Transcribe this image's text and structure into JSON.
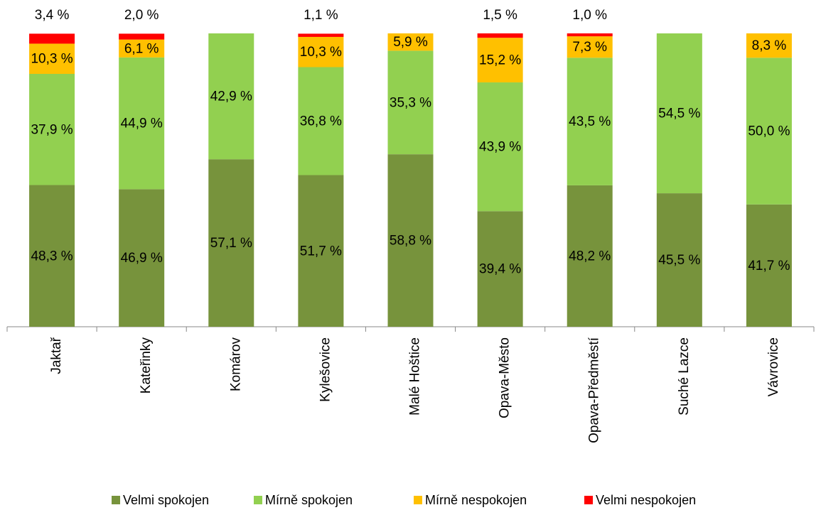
{
  "chart_data": {
    "type": "stacked_bar",
    "categories": [
      "Jaktař",
      "Kateřinky",
      "Komárov",
      "Kylešovice",
      "Malé Hoštice",
      "Opava-Město",
      "Opava-Předměstí",
      "Suché Lazce",
      "Vávrovice"
    ],
    "ylim": [
      0,
      100
    ],
    "series": [
      {
        "name": "Velmi spokojen",
        "color": "#77933c",
        "values": [
          48.3,
          46.9,
          57.1,
          51.7,
          58.8,
          39.4,
          48.2,
          45.5,
          41.7
        ],
        "value_labels": [
          "48,3 %",
          "46,9 %",
          "57,1 %",
          "51,7 %",
          "58,8 %",
          "39,4 %",
          "48,2 %",
          "45,5 %",
          "41,7 %"
        ]
      },
      {
        "name": "Mírně spokojen",
        "color": "#92d050",
        "values": [
          37.9,
          44.9,
          42.9,
          36.8,
          35.3,
          43.9,
          43.5,
          54.5,
          50.0
        ],
        "value_labels": [
          "37,9 %",
          "44,9 %",
          "42,9 %",
          "36,8 %",
          "35,3 %",
          "43,9 %",
          "43,5 %",
          "54,5 %",
          "50,0 %"
        ]
      },
      {
        "name": "Mírně nespokojen",
        "color": "#ffc000",
        "values": [
          10.3,
          6.1,
          null,
          10.3,
          5.9,
          15.2,
          7.3,
          null,
          8.3
        ],
        "value_labels": [
          "10,3 %",
          "6,1 %",
          null,
          "10,3 %",
          "5,9 %",
          "15,2 %",
          "7,3 %",
          null,
          "8,3 %"
        ]
      },
      {
        "name": "Velmi nespokojen",
        "color": "#ff0000",
        "values": [
          3.4,
          2.0,
          null,
          1.1,
          null,
          1.5,
          1.0,
          null,
          null
        ],
        "value_labels": [
          "3,4 %",
          "2,0 %",
          null,
          "1,1 %",
          null,
          "1,5 %",
          "1,0 %",
          null,
          null
        ]
      }
    ]
  }
}
